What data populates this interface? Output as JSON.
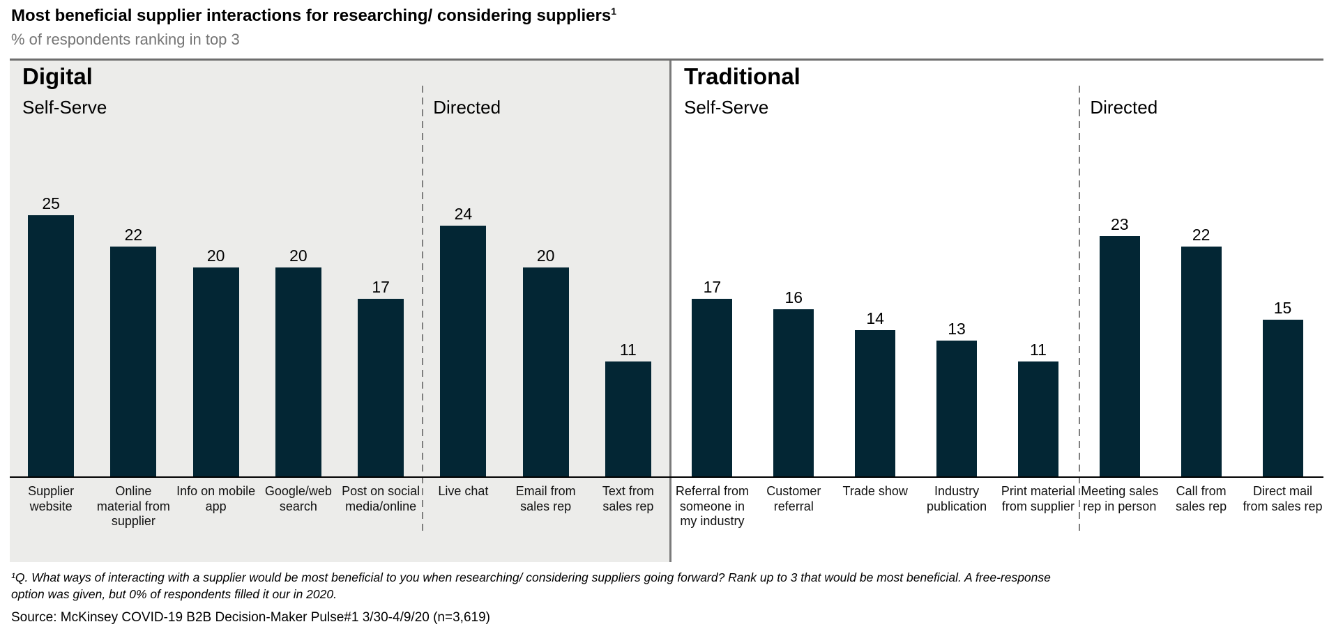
{
  "header": {
    "title": "Most beneficial supplier interactions for researching/ considering suppliers",
    "title_superscript": "1",
    "subtitle": "% of respondents ranking in top 3"
  },
  "chart_data": {
    "type": "bar",
    "title": "Most beneficial supplier interactions for researching/ considering suppliers",
    "subtitle": "% of respondents ranking in top 3",
    "value_axis": {
      "min": 0,
      "max": 25,
      "gridlines": false,
      "value_labels_position": "above bars"
    },
    "sections": [
      {
        "label": "Digital",
        "groups": [
          {
            "subgroup": "Self-Serve",
            "categories": [
              "Supplier website",
              "Online material from supplier",
              "Info on mobile app",
              "Google/web search",
              "Post on social media/online"
            ],
            "values": [
              25,
              22,
              20,
              20,
              17
            ]
          },
          {
            "subgroup": "Directed",
            "categories": [
              "Live chat",
              "Email from sales rep",
              "Text from sales rep"
            ],
            "values": [
              24,
              20,
              11
            ]
          }
        ]
      },
      {
        "label": "Traditional",
        "groups": [
          {
            "subgroup": "Self-Serve",
            "categories": [
              "Referral from someone in my industry",
              "Customer referral",
              "Trade show",
              "Industry publication",
              "Print material from supplier"
            ],
            "values": [
              17,
              16,
              14,
              13,
              11
            ]
          },
          {
            "subgroup": "Directed",
            "categories": [
              "Meeting sales rep in person",
              "Call from sales rep",
              "Direct mail from sales rep"
            ],
            "values": [
              23,
              22,
              15
            ]
          }
        ]
      }
    ]
  },
  "footnote": "¹Q. What ways of interacting with a supplier would be most beneficial to you when researching/ considering suppliers going forward? Rank up to 3 that would be most beneficial. A free-response option was given, but 0% of respondents filled it our in 2020.",
  "source": "Source: McKinsey COVID-19 B2B Decision-Maker Pulse#1 3/30-4/9/20 (n=3,619)",
  "colors": {
    "bar": "#032634",
    "digital_bg": "#ECECEA",
    "divider": "#7F7F7F",
    "axis": "#000000",
    "subtitle_gray": "#757575"
  }
}
